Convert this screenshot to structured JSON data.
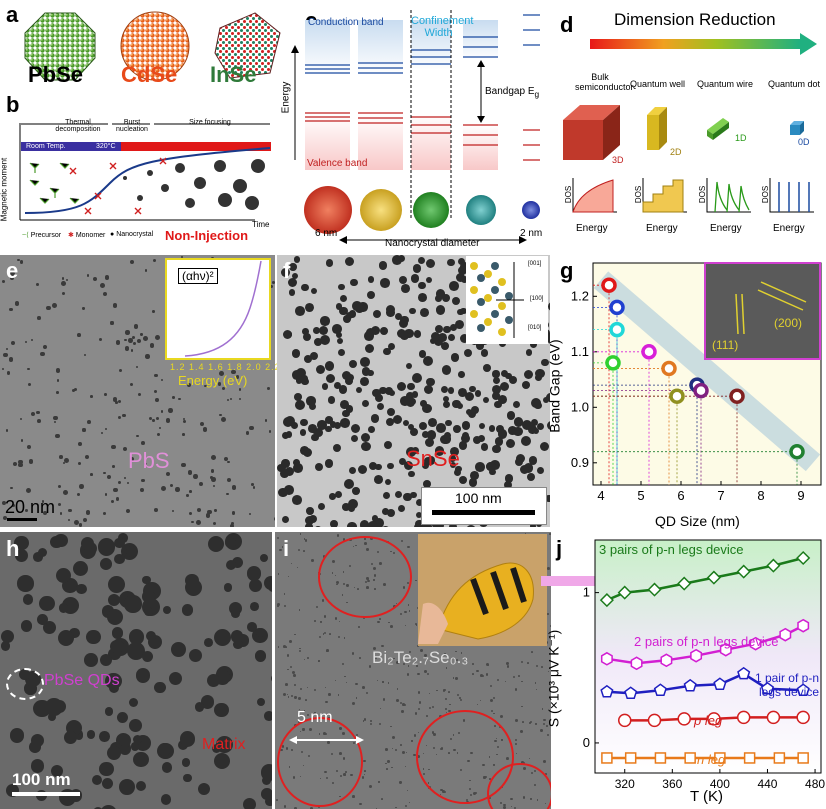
{
  "panels": {
    "a": "a",
    "b": "b",
    "c": "c",
    "d": "d",
    "e": "e",
    "f": "f",
    "g": "g",
    "h": "h",
    "i": "i",
    "j": "j"
  },
  "panel_a": {
    "labels": [
      "PbSe",
      "CdSe",
      "InSe"
    ],
    "colors": [
      "#3a8a2a",
      "#e84a1a",
      "#2f7a3a"
    ]
  },
  "panel_b": {
    "phases": [
      "Thermal decomposition",
      "Burst nucleation",
      "Size focusing"
    ],
    "room_temp": "Room Temp.",
    "temp": "320°C",
    "ylabel": "Magnetic moment",
    "xlabel": "Time",
    "legend": [
      "Precursor",
      "Monomer",
      "Nanocrystal"
    ],
    "title": "Non-Injection"
  },
  "panel_c": {
    "conduction": "Conduction band",
    "confinement": "Confinement Width",
    "valence": "Valence band",
    "bandgap": "Bandgap E",
    "bandgap_sub": "g",
    "yaxis": "Energy",
    "xaxis": "Nanocrystal diameter",
    "d_left": "6 nm",
    "d_right": "2 nm"
  },
  "panel_d": {
    "title": "Dimension Reduction",
    "labels": [
      "Bulk semiconductor",
      "Quantum well",
      "Quantum wire",
      "Quantum dot"
    ],
    "dims": [
      "3D",
      "2D",
      "1D",
      "0D"
    ],
    "dos": "DOS",
    "energy": "Energy"
  },
  "panel_e": {
    "inset_y": "(αhν)²",
    "inset_x": "Energy (eV)",
    "inset_ticks": [
      "1.2",
      "1.4",
      "1.6",
      "1.8",
      "2.0",
      "2.2"
    ],
    "label": "PbS",
    "scale": "20 nm"
  },
  "panel_f": {
    "label": "SnSe",
    "scale": "100 nm",
    "axes": [
      "[001]",
      "[100]",
      "[010]"
    ]
  },
  "panel_h": {
    "qd": "PbSe QDs",
    "matrix": "Matrix",
    "scale": "100 nm"
  },
  "panel_i": {
    "scale": "5 nm",
    "material": "Bi₂Te₂.₇Se₀.₃"
  },
  "chart_g": {
    "type": "scatter",
    "xlabel": "QD Size (nm)",
    "ylabel": "Band Gap (eV)",
    "xlim": [
      3.8,
      9.5
    ],
    "ylim": [
      0.86,
      1.26
    ],
    "xticks": [
      "4",
      "5",
      "6",
      "7",
      "8",
      "9"
    ],
    "yticks": [
      "0.9",
      "1.0",
      "1.1",
      "1.2"
    ],
    "inset_labels": [
      "(111)",
      "(200)"
    ],
    "points": [
      {
        "x": 4.2,
        "y": 1.22,
        "color": "#e01818"
      },
      {
        "x": 4.4,
        "y": 1.18,
        "color": "#2040d0"
      },
      {
        "x": 4.4,
        "y": 1.14,
        "color": "#20d8d8"
      },
      {
        "x": 4.3,
        "y": 1.08,
        "color": "#30d030"
      },
      {
        "x": 5.2,
        "y": 1.1,
        "color": "#d820d8"
      },
      {
        "x": 5.7,
        "y": 1.07,
        "color": "#e07820"
      },
      {
        "x": 5.9,
        "y": 1.02,
        "color": "#909020"
      },
      {
        "x": 6.4,
        "y": 1.04,
        "color": "#203080"
      },
      {
        "x": 6.5,
        "y": 1.03,
        "color": "#802080"
      },
      {
        "x": 7.4,
        "y": 1.02,
        "color": "#802020"
      },
      {
        "x": 8.9,
        "y": 0.92,
        "color": "#208030"
      }
    ]
  },
  "chart_j": {
    "type": "line",
    "xlabel": "T (K)",
    "ylabel": "S (×10³ μV K⁻¹)",
    "xlim": [
      295,
      485
    ],
    "ylim": [
      -0.2,
      1.35
    ],
    "xticks": [
      "320",
      "360",
      "400",
      "440",
      "480"
    ],
    "yticks": [
      "0",
      "1"
    ],
    "series": [
      {
        "name": "3 pairs of p-n legs device",
        "color": "#1a7a1a",
        "marker": "diamond",
        "x": [
          305,
          320,
          345,
          370,
          395,
          420,
          445,
          470
        ],
        "values": [
          0.95,
          1.0,
          1.02,
          1.06,
          1.1,
          1.14,
          1.18,
          1.23
        ]
      },
      {
        "name": "2 pairs of p-n legs device",
        "color": "#d21fd2",
        "marker": "hexagon",
        "x": [
          305,
          330,
          355,
          380,
          405,
          430,
          455,
          470
        ],
        "values": [
          0.56,
          0.53,
          0.55,
          0.58,
          0.62,
          0.66,
          0.72,
          0.78
        ]
      },
      {
        "name": "1 pair of p-n legs device",
        "color": "#1f1fc0",
        "marker": "pentagon",
        "x": [
          305,
          325,
          350,
          375,
          400,
          420,
          440,
          470
        ],
        "values": [
          0.34,
          0.33,
          0.35,
          0.38,
          0.39,
          0.46,
          0.36,
          0.35
        ]
      },
      {
        "name": "p leg",
        "color": "#d21f1f",
        "marker": "circle",
        "x": [
          320,
          345,
          370,
          395,
          420,
          445,
          470
        ],
        "values": [
          0.15,
          0.15,
          0.16,
          0.16,
          0.17,
          0.17,
          0.17
        ]
      },
      {
        "name": "n leg",
        "color": "#e87a1a",
        "marker": "square",
        "x": [
          305,
          325,
          350,
          375,
          400,
          425,
          450,
          470
        ],
        "values": [
          -0.1,
          -0.1,
          -0.1,
          -0.1,
          -0.1,
          -0.1,
          -0.1,
          -0.1
        ]
      }
    ]
  }
}
